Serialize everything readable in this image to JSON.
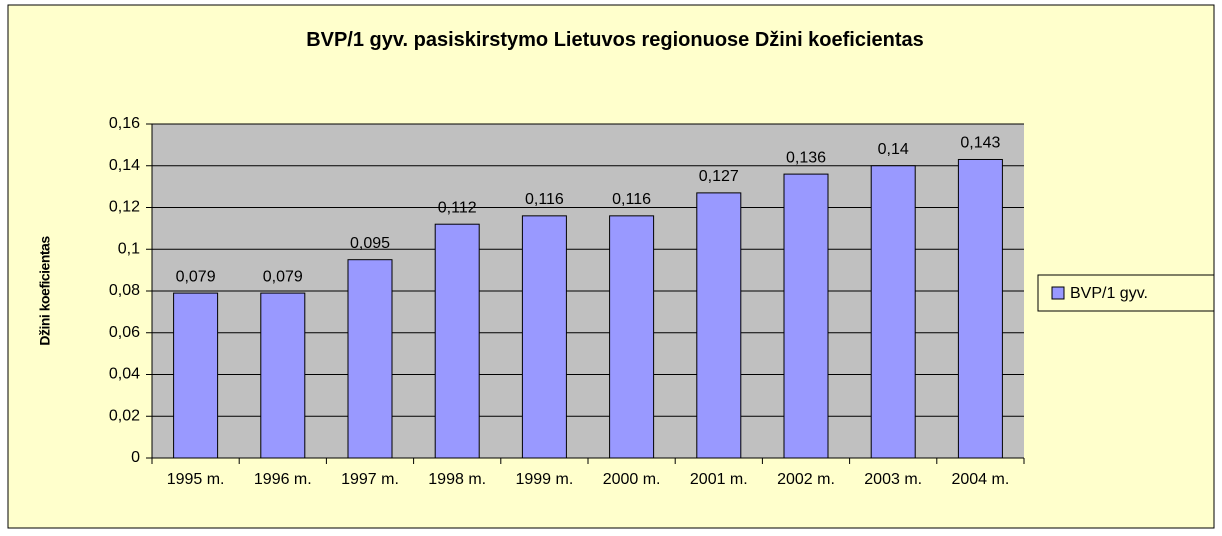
{
  "chart_data": {
    "type": "bar",
    "title": "BVP/1 gyv. pasiskirstymo Lietuvos regionuose Džini koeficientas",
    "y_label": "Džini koeficientas",
    "categories": [
      "1995 m.",
      "1996 m.",
      "1997 m.",
      "1998 m.",
      "1999 m.",
      "2000 m.",
      "2001 m.",
      "2002 m.",
      "2003 m.",
      "2004 m."
    ],
    "series": [
      {
        "name": "BVP/1 gyv.",
        "color": "#9999ff",
        "values": [
          0.079,
          0.079,
          0.095,
          0.112,
          0.116,
          0.116,
          0.127,
          0.136,
          0.14,
          0.143
        ],
        "value_labels": [
          "0,079",
          "0,079",
          "0,095",
          "0,112",
          "0,116",
          "0,116",
          "0,127",
          "0,136",
          "0,14",
          "0,143"
        ]
      }
    ],
    "ylim": [
      0,
      0.16
    ],
    "yticks": [
      0,
      {
        "value": 0.02,
        "label": "0,02"
      },
      {
        "value": 0.04,
        "label": "0,04"
      },
      {
        "value": 0.06,
        "label": "0,06"
      },
      {
        "value": 0.08,
        "label": "0,08"
      },
      {
        "value": 0.1,
        "label": "0,1"
      },
      {
        "value": 0.12,
        "label": "0,12"
      },
      {
        "value": 0.14,
        "label": "0,14"
      },
      {
        "value": 0.16,
        "label": "0,16"
      }
    ],
    "grid": true,
    "legend": "right"
  }
}
